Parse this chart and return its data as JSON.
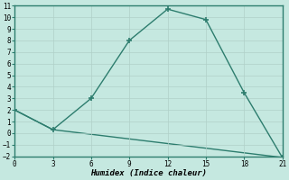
{
  "xlabel": "Humidex (Indice chaleur)",
  "line1_x": [
    0,
    3,
    6,
    9,
    12,
    15,
    18,
    21
  ],
  "line1_y": [
    2,
    0.3,
    3,
    8,
    10.7,
    9.8,
    3.5,
    -2.1
  ],
  "line2_x": [
    0,
    3,
    21
  ],
  "line2_y": [
    2,
    0.3,
    -2.1
  ],
  "color": "#2d7d6e",
  "bg_color": "#c5e8e0",
  "grid_major_color": "#b0d0c8",
  "grid_minor_color": "#d0eae4",
  "xlim": [
    0,
    21
  ],
  "ylim": [
    -2,
    11
  ],
  "xticks": [
    0,
    3,
    6,
    9,
    12,
    15,
    18,
    21
  ],
  "yticks": [
    -2,
    -1,
    0,
    1,
    2,
    3,
    4,
    5,
    6,
    7,
    8,
    9,
    10,
    11
  ],
  "marker": "+",
  "markersize": 5,
  "linewidth": 1.0
}
